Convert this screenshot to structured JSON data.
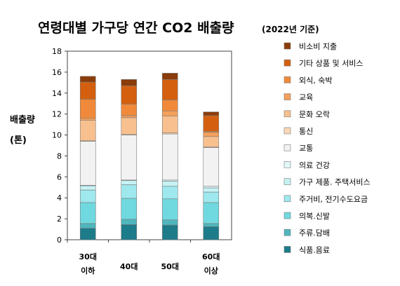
{
  "colors": [
    "#1c7c8a",
    "#4fb6bd",
    "#6fd9df",
    "#9ee8ee",
    "#c6f2f4",
    "#e3f8fa",
    "#f2f2f2",
    "#fbd8b7",
    "#f8c08f",
    "#f4a05c",
    "#f08a3a",
    "#d4600f",
    "#8a3c0a"
  ],
  "chart_data": {
    "type": "bar",
    "stacked": true,
    "title": "연령대별 가구당 연간 CO2 배출량",
    "subtitle": "(2022년 기준)",
    "ylabel_lines": [
      "배출량",
      "(톤)"
    ],
    "ylim": [
      0,
      18
    ],
    "yticks": [
      "0",
      "2",
      "4",
      "6",
      "8",
      "10",
      "12",
      "14",
      "16",
      "18"
    ],
    "categories": [
      [
        "30대",
        "이하"
      ],
      [
        "40대"
      ],
      [
        "50대"
      ],
      [
        "60대",
        "이상"
      ]
    ],
    "legend_position": "right",
    "series": [
      {
        "name": "식품.음료",
        "values": [
          1.1,
          1.45,
          1.4,
          1.25
        ]
      },
      {
        "name": "주류.담배",
        "values": [
          0.45,
          0.5,
          0.5,
          0.3
        ]
      },
      {
        "name": "의복.신발",
        "values": [
          2.0,
          2.0,
          2.0,
          2.0
        ]
      },
      {
        "name": "주거비, 전기수도요금",
        "values": [
          1.2,
          1.3,
          1.2,
          1.0
        ]
      },
      {
        "name": "가구 제품. 주택서비스",
        "values": [
          0.4,
          0.4,
          0.5,
          0.4
        ]
      },
      {
        "name": "의료 건강",
        "values": [
          0.05,
          0.05,
          0.1,
          0.15
        ]
      },
      {
        "name": "교통",
        "values": [
          4.2,
          4.3,
          4.4,
          3.7
        ]
      },
      {
        "name": "통신",
        "values": [
          0.05,
          0.05,
          0.1,
          0.05
        ]
      },
      {
        "name": "문화 오락",
        "values": [
          1.95,
          1.6,
          1.6,
          1.0
        ]
      },
      {
        "name": "교육",
        "values": [
          0.2,
          0.2,
          0.5,
          0.4
        ]
      },
      {
        "name": "외식, 숙박",
        "values": [
          1.8,
          1.1,
          1.05,
          0.1
        ]
      },
      {
        "name": "기타 상품 및 서비스",
        "values": [
          1.65,
          1.75,
          1.95,
          1.5
        ]
      },
      {
        "name": "비소비 지출",
        "values": [
          0.55,
          0.6,
          0.6,
          0.35
        ]
      }
    ]
  }
}
